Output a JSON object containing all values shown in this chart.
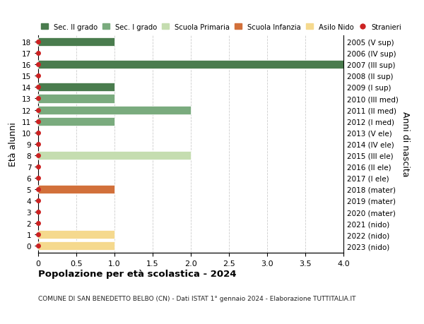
{
  "ages": [
    18,
    17,
    16,
    15,
    14,
    13,
    12,
    11,
    10,
    9,
    8,
    7,
    6,
    5,
    4,
    3,
    2,
    1,
    0
  ],
  "right_labels": [
    "2005 (V sup)",
    "2006 (IV sup)",
    "2007 (III sup)",
    "2008 (II sup)",
    "2009 (I sup)",
    "2010 (III med)",
    "2011 (II med)",
    "2012 (I med)",
    "2013 (V ele)",
    "2014 (IV ele)",
    "2015 (III ele)",
    "2016 (II ele)",
    "2017 (I ele)",
    "2018 (mater)",
    "2019 (mater)",
    "2020 (mater)",
    "2021 (nido)",
    "2022 (nido)",
    "2023 (nido)"
  ],
  "bars": [
    {
      "age": 18,
      "value": 1,
      "color": "#4a7c4e"
    },
    {
      "age": 17,
      "value": 0,
      "color": "#4a7c4e"
    },
    {
      "age": 16,
      "value": 4,
      "color": "#4a7c4e"
    },
    {
      "age": 15,
      "value": 0,
      "color": "#4a7c4e"
    },
    {
      "age": 14,
      "value": 1,
      "color": "#4a7c4e"
    },
    {
      "age": 13,
      "value": 1,
      "color": "#7aab7e"
    },
    {
      "age": 12,
      "value": 2,
      "color": "#7aab7e"
    },
    {
      "age": 11,
      "value": 1,
      "color": "#7aab7e"
    },
    {
      "age": 10,
      "value": 0,
      "color": "#c5ddb0"
    },
    {
      "age": 9,
      "value": 0,
      "color": "#c5ddb0"
    },
    {
      "age": 8,
      "value": 2,
      "color": "#c5ddb0"
    },
    {
      "age": 7,
      "value": 0,
      "color": "#c5ddb0"
    },
    {
      "age": 6,
      "value": 0,
      "color": "#c5ddb0"
    },
    {
      "age": 5,
      "value": 1,
      "color": "#d2703a"
    },
    {
      "age": 4,
      "value": 0,
      "color": "#d2703a"
    },
    {
      "age": 3,
      "value": 0,
      "color": "#d2703a"
    },
    {
      "age": 2,
      "value": 0,
      "color": "#f5d98e"
    },
    {
      "age": 1,
      "value": 1,
      "color": "#f5d98e"
    },
    {
      "age": 0,
      "value": 1,
      "color": "#f5d98e"
    }
  ],
  "stranieri_ages": [
    18,
    17,
    16,
    15,
    14,
    13,
    12,
    11,
    10,
    9,
    8,
    7,
    6,
    5,
    4,
    3,
    2,
    1,
    0
  ],
  "xlim": [
    0,
    4.0
  ],
  "xticks": [
    0,
    0.5,
    1.0,
    1.5,
    2.0,
    2.5,
    3.0,
    3.5,
    4.0
  ],
  "xtick_labels": [
    "0",
    "0.5",
    "1.0",
    "1.5",
    "2.0",
    "2.5",
    "3.0",
    "3.5",
    "4.0"
  ],
  "ylabel_left": "Età alunni",
  "ylabel_right": "Anni di nascita",
  "title": "Popolazione per età scolastica - 2024",
  "subtitle": "COMUNE DI SAN BENEDETTO BELBO (CN) - Dati ISTAT 1° gennaio 2024 - Elaborazione TUTTITALIA.IT",
  "legend_items": [
    {
      "label": "Sec. II grado",
      "color": "#4a7c4e",
      "type": "patch"
    },
    {
      "label": "Sec. I grado",
      "color": "#7aab7e",
      "type": "patch"
    },
    {
      "label": "Scuola Primaria",
      "color": "#c5ddb0",
      "type": "patch"
    },
    {
      "label": "Scuola Infanzia",
      "color": "#d2703a",
      "type": "patch"
    },
    {
      "label": "Asilo Nido",
      "color": "#f5d98e",
      "type": "patch"
    },
    {
      "label": "Stranieri",
      "color": "#cc2222",
      "type": "circle"
    }
  ],
  "bg_color": "#ffffff",
  "grid_color": "#cccccc",
  "bar_height": 0.75,
  "dot_color": "#cc2222",
  "dot_size": 4
}
